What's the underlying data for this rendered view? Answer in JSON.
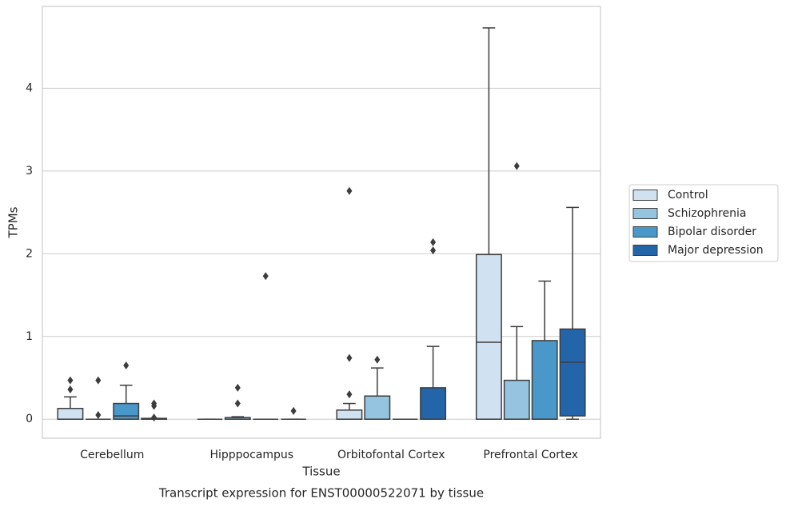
{
  "chart_data": {
    "type": "box",
    "title": "Transcript expression for ENST00000522071 by tissue",
    "xlabel": "Tissue",
    "ylabel": "TPMs",
    "categories": [
      "Cerebellum",
      "Hipppocampus",
      "Orbitofontal Cortex",
      "Prefrontal Cortex"
    ],
    "ylim": [
      -0.23,
      4.99
    ],
    "yticks": [
      0,
      1,
      2,
      3,
      4
    ],
    "grid": true,
    "legend": "right",
    "series": [
      {
        "name": "Control",
        "color": "#d0e1f2",
        "values": [
          {
            "min": 0,
            "q1": 0,
            "median": 0,
            "q3": 0.13,
            "max": 0.27,
            "outliers": [
              0.36,
              0.47
            ]
          },
          {
            "min": 0,
            "q1": 0,
            "median": 0,
            "q3": 0,
            "max": 0,
            "outliers": []
          },
          {
            "min": 0,
            "q1": 0,
            "median": 0,
            "q3": 0.11,
            "max": 0.19,
            "outliers": [
              0.3,
              0.74,
              2.76
            ]
          },
          {
            "min": 0,
            "q1": 0,
            "median": 0.93,
            "q3": 1.99,
            "max": 4.73,
            "outliers": []
          }
        ]
      },
      {
        "name": "Schizophrenia",
        "color": "#94c4df",
        "values": [
          {
            "min": 0,
            "q1": 0,
            "median": 0,
            "q3": 0,
            "max": 0,
            "outliers": [
              0.05,
              0.47
            ]
          },
          {
            "min": 0,
            "q1": 0,
            "median": 0,
            "q3": 0.02,
            "max": 0.03,
            "outliers": [
              0.19,
              0.38
            ]
          },
          {
            "min": 0,
            "q1": 0,
            "median": 0,
            "q3": 0.28,
            "max": 0.62,
            "outliers": [
              0.72
            ]
          },
          {
            "min": 0,
            "q1": 0,
            "median": 0,
            "q3": 0.47,
            "max": 1.12,
            "outliers": [
              3.06
            ]
          }
        ]
      },
      {
        "name": "Bipolar disorder",
        "color": "#4a98c9",
        "values": [
          {
            "min": 0,
            "q1": 0,
            "median": 0.04,
            "q3": 0.19,
            "max": 0.41,
            "outliers": [
              0.65
            ]
          },
          {
            "min": 0,
            "q1": 0,
            "median": 0,
            "q3": 0,
            "max": 0,
            "outliers": [
              1.73
            ]
          },
          {
            "min": 0,
            "q1": 0,
            "median": 0,
            "q3": 0,
            "max": 0,
            "outliers": []
          },
          {
            "min": 0,
            "q1": 0,
            "median": 0,
            "q3": 0.95,
            "max": 1.67,
            "outliers": []
          }
        ]
      },
      {
        "name": "Major depression",
        "color": "#2365a8",
        "values": [
          {
            "min": 0,
            "q1": 0,
            "median": 0,
            "q3": 0.01,
            "max": 0.01,
            "outliers": [
              0.02,
              0.16,
              0.19
            ]
          },
          {
            "min": 0,
            "q1": 0,
            "median": 0,
            "q3": 0,
            "max": 0,
            "outliers": [
              0.1
            ]
          },
          {
            "min": 0,
            "q1": 0,
            "median": 0,
            "q3": 0.38,
            "max": 0.88,
            "outliers": [
              2.04,
              2.14
            ]
          },
          {
            "min": 0,
            "q1": 0.04,
            "median": 0.69,
            "q3": 1.09,
            "max": 2.56,
            "outliers": []
          }
        ]
      }
    ]
  }
}
